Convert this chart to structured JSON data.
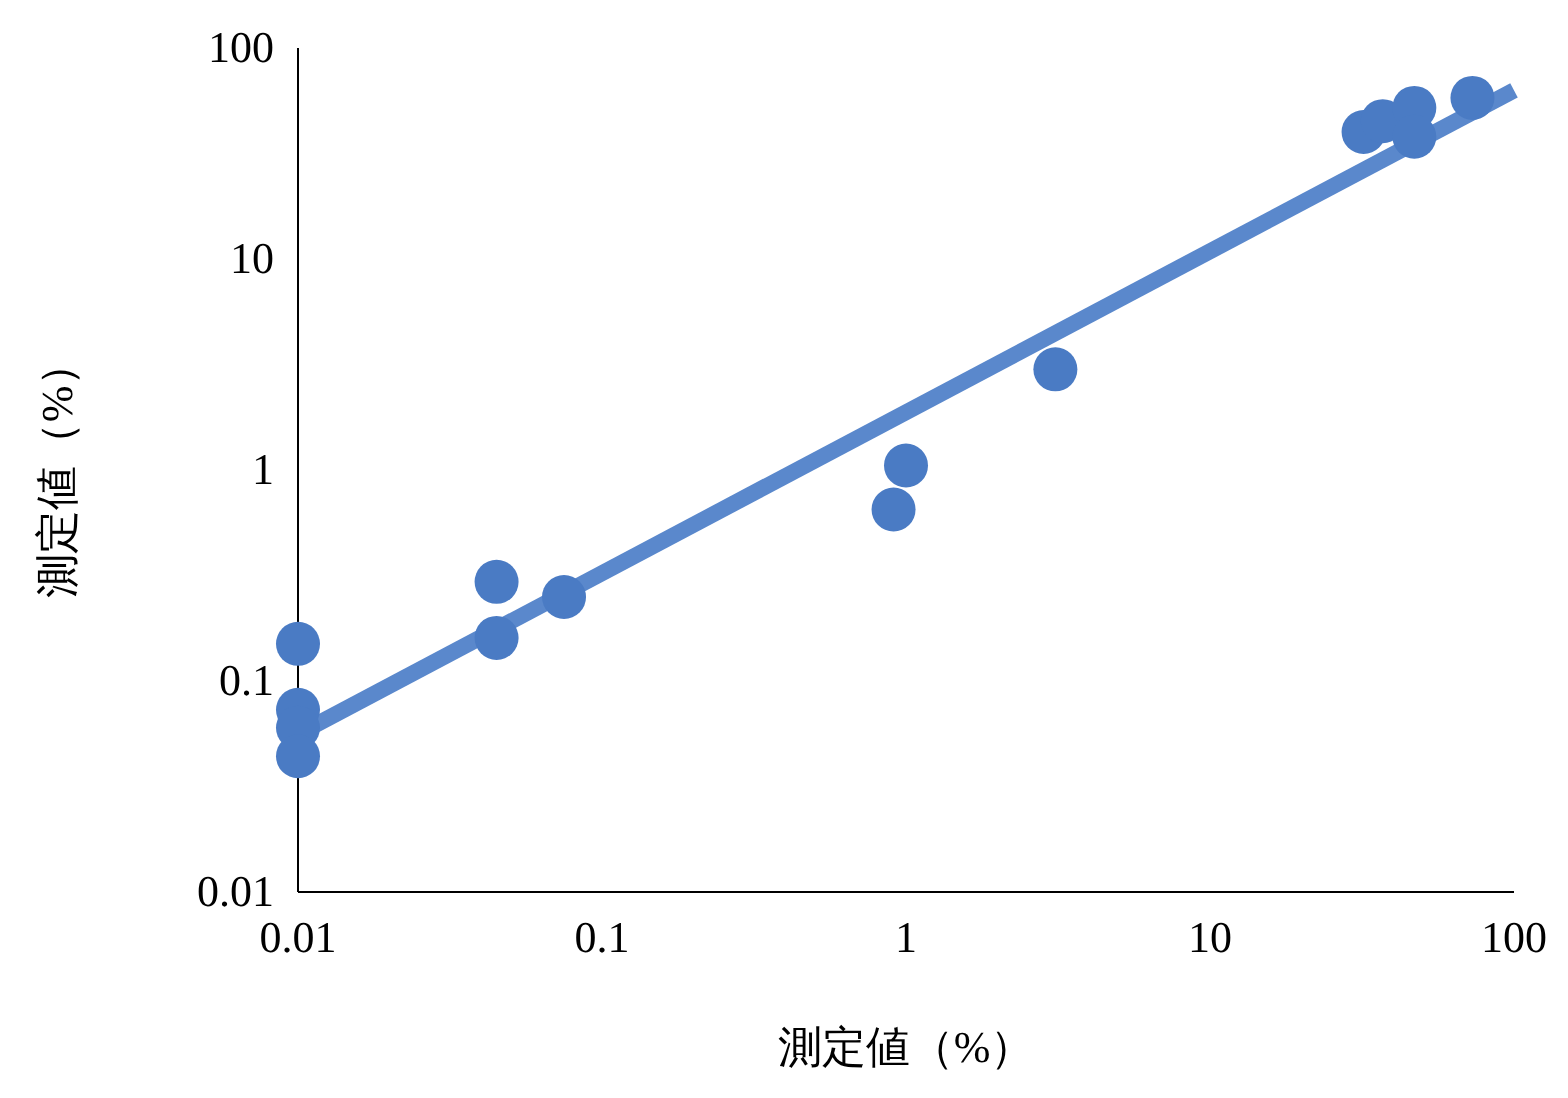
{
  "chart_data": {
    "type": "scatter",
    "xlabel": "測定値（%）",
    "ylabel": "測定値（%）",
    "log": "xy",
    "xlim": [
      0.01,
      100
    ],
    "ylim": [
      0.01,
      100
    ],
    "xticks": [
      0.01,
      0.1,
      1,
      10,
      100
    ],
    "yticks": [
      0.01,
      0.1,
      1,
      10,
      100
    ],
    "grid": false,
    "marker": "circle",
    "series": [
      {
        "color": "#4a7bc4",
        "x": [
          0.01,
          0.01,
          0.01,
          0.01,
          0.045,
          0.045,
          0.075,
          0.91,
          1.0,
          3.1,
          32,
          37,
          47,
          47,
          73
        ],
        "values": [
          0.15,
          0.073,
          0.06,
          0.044,
          0.295,
          0.16,
          0.25,
          0.65,
          1.05,
          3.0,
          40,
          45,
          52,
          38,
          58
        ]
      },
      {
        "type": "line",
        "color": "#5a88cc",
        "line_style": "solid",
        "marker": "none",
        "x": [
          0.01,
          100
        ],
        "values": [
          0.056,
          63
        ]
      }
    ]
  }
}
